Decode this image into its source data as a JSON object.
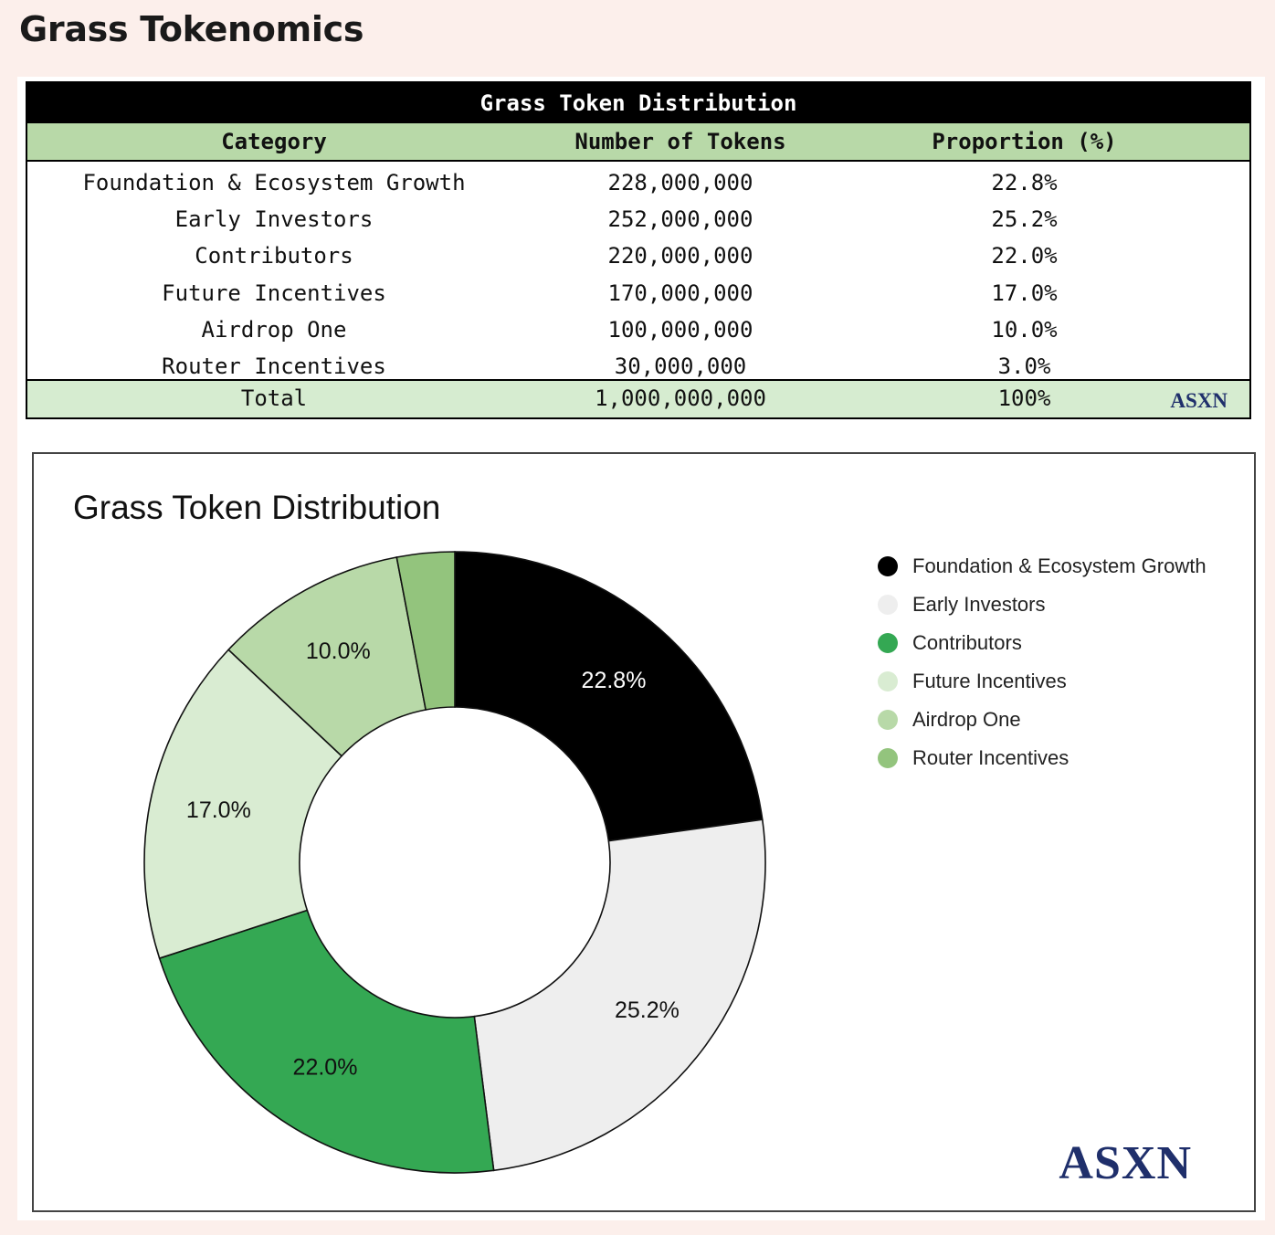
{
  "page": {
    "heading": "Grass Tokenomics"
  },
  "table": {
    "title": "Grass Token Distribution",
    "headers": [
      "Category",
      "Number of Tokens",
      "Proportion (%)"
    ],
    "rows": [
      [
        "Foundation & Ecosystem Growth",
        "228,000,000",
        "22.8%"
      ],
      [
        "Early Investors",
        "252,000,000",
        "25.2%"
      ],
      [
        "Contributors",
        "220,000,000",
        "22.0%"
      ],
      [
        "Future Incentives",
        "170,000,000",
        "17.0%"
      ],
      [
        "Airdrop One",
        "100,000,000",
        "10.0%"
      ],
      [
        "Router Incentives",
        "30,000,000",
        "3.0%"
      ]
    ],
    "total": [
      "Total",
      "1,000,000,000",
      "100%"
    ],
    "brand": "ASXN"
  },
  "chart_data": {
    "type": "pie",
    "donut": true,
    "title": "Grass Token Distribution",
    "categories": [
      "Foundation & Ecosystem Growth",
      "Early Investors",
      "Contributors",
      "Future Incentives",
      "Airdrop One",
      "Router Incentives"
    ],
    "values": [
      22.8,
      25.2,
      22.0,
      17.0,
      10.0,
      3.0
    ],
    "slice_labels": [
      "22.8%",
      "25.2%",
      "22.0%",
      "17.0%",
      "10.0%",
      ""
    ],
    "colors": [
      "#000000",
      "#eeeeee",
      "#34a853",
      "#d9ecd2",
      "#b8d9a8",
      "#93c47d"
    ],
    "label_colors": [
      "#ffffff",
      "#111111",
      "#111111",
      "#111111",
      "#111111",
      "#111111"
    ],
    "legend_placement": "right",
    "brand": "ASXN"
  }
}
